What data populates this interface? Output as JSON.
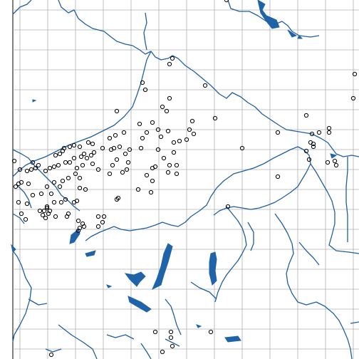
{
  "map": {
    "background_color": "#ffffff",
    "gridline_color": "#b0b0b0",
    "border_color": "#1f5f9f",
    "water_color": "#1f63a8",
    "marker_stroke_color": "#000000",
    "marker_shape": "hollow-circle",
    "grid": true
  }
}
